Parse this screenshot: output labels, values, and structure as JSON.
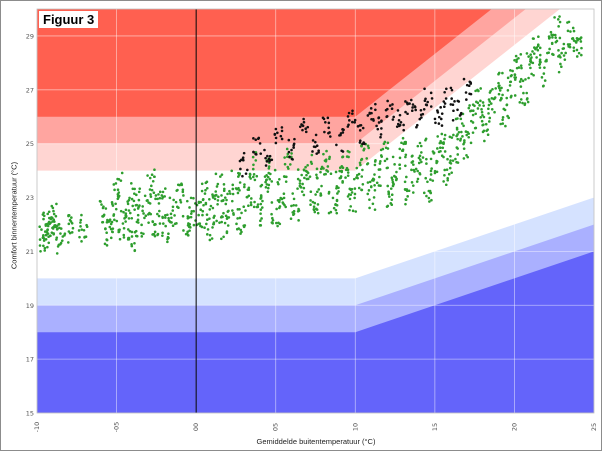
{
  "figure_label": "Figuur 3",
  "chart_data": {
    "type": "scatter",
    "title": "",
    "xlabel": "Gemiddelde buitentemperatuur (°C)",
    "ylabel": "Comfort binnentemperatuur (°C)",
    "xlim": [
      -10,
      25
    ],
    "ylim": [
      15,
      30
    ],
    "x_ticks": [
      -10,
      -5,
      0,
      5,
      10,
      15,
      20,
      25
    ],
    "x_tick_labels": [
      "-10",
      "-05",
      "00",
      "05",
      "10",
      "15",
      "20",
      "25"
    ],
    "y_ticks": [
      15,
      17,
      19,
      21,
      23,
      25,
      27,
      29
    ],
    "grid": true,
    "vertical_reference_line_x": 0,
    "comfort_bands": [
      {
        "name": "upper-dark",
        "color": "#ff6050",
        "lower": [
          [
            -10,
            26
          ],
          [
            10,
            26
          ],
          [
            25,
            33
          ]
        ],
        "upper": 30
      },
      {
        "name": "upper-mid",
        "color": "#ffa5a0",
        "lower": [
          [
            -10,
            25
          ],
          [
            10,
            25
          ],
          [
            25,
            32
          ]
        ],
        "upper_band": "upper-dark"
      },
      {
        "name": "upper-light",
        "color": "#ffd5d2",
        "lower": [
          [
            -10,
            24
          ],
          [
            10,
            24
          ],
          [
            25,
            31
          ]
        ],
        "upper_band": "upper-mid"
      },
      {
        "name": "lower-light",
        "color": "#d5e2ff",
        "upper": [
          [
            -10,
            20
          ],
          [
            10,
            20
          ],
          [
            25,
            23
          ]
        ]
      },
      {
        "name": "lower-mid",
        "color": "#aab0ff",
        "upper": [
          [
            -10,
            19
          ],
          [
            10,
            19
          ],
          [
            25,
            22
          ]
        ]
      },
      {
        "name": "lower-dark",
        "color": "#6464fa",
        "upper": [
          [
            -10,
            18
          ],
          [
            10,
            18
          ],
          [
            25,
            21
          ]
        ],
        "lower": 15
      }
    ],
    "series": [
      {
        "color": "#2e9e2e",
        "points": [
          [
            -9.6,
            21.5
          ],
          [
            -9.4,
            21.9
          ],
          [
            -9.2,
            22.1
          ],
          [
            -9.0,
            21.7
          ],
          [
            -8.8,
            22.4
          ],
          [
            -8.5,
            21.4
          ],
          [
            -8.0,
            21.8
          ],
          [
            -7.1,
            21.9
          ],
          [
            -5.8,
            22.6
          ],
          [
            -5.5,
            21.6
          ],
          [
            -5.2,
            22.3
          ],
          [
            -4.9,
            23.5
          ],
          [
            -4.6,
            22.0
          ],
          [
            -4.2,
            22.5
          ],
          [
            -4.0,
            21.5
          ],
          [
            -3.8,
            23.0
          ],
          [
            -3.5,
            22.1
          ],
          [
            -3.1,
            22.6
          ],
          [
            -2.8,
            23.5
          ],
          [
            -2.5,
            22.0
          ],
          [
            -2.2,
            22.8
          ],
          [
            -1.9,
            21.9
          ],
          [
            -1.5,
            22.5
          ],
          [
            -1.0,
            23.0
          ],
          [
            -0.6,
            22.0
          ],
          [
            -0.3,
            22.5
          ],
          [
            0.3,
            22.3
          ],
          [
            0.6,
            23.1
          ],
          [
            0.9,
            21.9
          ],
          [
            1.2,
            22.6
          ],
          [
            1.5,
            23.4
          ],
          [
            1.8,
            22.0
          ],
          [
            2.1,
            22.8
          ],
          [
            2.5,
            23.6
          ],
          [
            2.8,
            22.2
          ],
          [
            3.2,
            23.0
          ],
          [
            3.6,
            24.2
          ],
          [
            3.9,
            22.5
          ],
          [
            4.3,
            23.3
          ],
          [
            4.7,
            24.0
          ],
          [
            5.0,
            22.4
          ],
          [
            5.4,
            23.2
          ],
          [
            5.8,
            24.3
          ],
          [
            6.2,
            22.7
          ],
          [
            6.6,
            23.5
          ],
          [
            7.0,
            24.1
          ],
          [
            7.4,
            22.8
          ],
          [
            7.8,
            23.6
          ],
          [
            8.2,
            24.4
          ],
          [
            8.6,
            22.9
          ],
          [
            9.0,
            23.7
          ],
          [
            9.4,
            24.2
          ],
          [
            9.8,
            23.0
          ],
          [
            10.2,
            23.8
          ],
          [
            10.6,
            24.5
          ],
          [
            11.0,
            23.1
          ],
          [
            11.4,
            23.9
          ],
          [
            11.8,
            24.6
          ],
          [
            12.2,
            23.2
          ],
          [
            12.6,
            24.0
          ],
          [
            13.0,
            24.7
          ],
          [
            13.4,
            23.3
          ],
          [
            13.8,
            24.1
          ],
          [
            14.2,
            24.8
          ],
          [
            14.6,
            23.4
          ],
          [
            15.0,
            24.3
          ],
          [
            15.4,
            25.0
          ],
          [
            15.8,
            24.0
          ],
          [
            16.2,
            24.8
          ],
          [
            16.6,
            25.6
          ],
          [
            17.0,
            25.0
          ],
          [
            17.4,
            25.9
          ],
          [
            17.8,
            26.5
          ],
          [
            18.2,
            25.6
          ],
          [
            18.6,
            26.5
          ],
          [
            19.0,
            27.1
          ],
          [
            19.4,
            26.2
          ],
          [
            19.8,
            27.2
          ],
          [
            20.2,
            27.8
          ],
          [
            20.6,
            26.9
          ],
          [
            21.0,
            27.9
          ],
          [
            21.4,
            28.5
          ],
          [
            21.8,
            27.6
          ],
          [
            22.2,
            28.6
          ],
          [
            22.6,
            29.2
          ],
          [
            23.0,
            28.2
          ],
          [
            23.6,
            29.1
          ],
          [
            24.0,
            28.5
          ]
        ]
      },
      {
        "color": "#111111",
        "points": [
          [
            3.0,
            24.2
          ],
          [
            3.8,
            25.0
          ],
          [
            4.5,
            24.6
          ],
          [
            5.2,
            25.3
          ],
          [
            6.0,
            24.8
          ],
          [
            6.8,
            25.5
          ],
          [
            7.5,
            24.9
          ],
          [
            8.2,
            25.6
          ],
          [
            9.0,
            25.1
          ],
          [
            9.8,
            25.8
          ],
          [
            10.4,
            25.4
          ],
          [
            11.0,
            26.1
          ],
          [
            11.6,
            25.6
          ],
          [
            12.2,
            26.3
          ],
          [
            12.8,
            25.8
          ],
          [
            13.4,
            26.5
          ],
          [
            14.0,
            26.0
          ],
          [
            14.6,
            26.6
          ],
          [
            15.2,
            26.1
          ],
          [
            15.8,
            26.8
          ],
          [
            16.4,
            26.3
          ],
          [
            17.0,
            27.0
          ]
        ]
      }
    ]
  }
}
